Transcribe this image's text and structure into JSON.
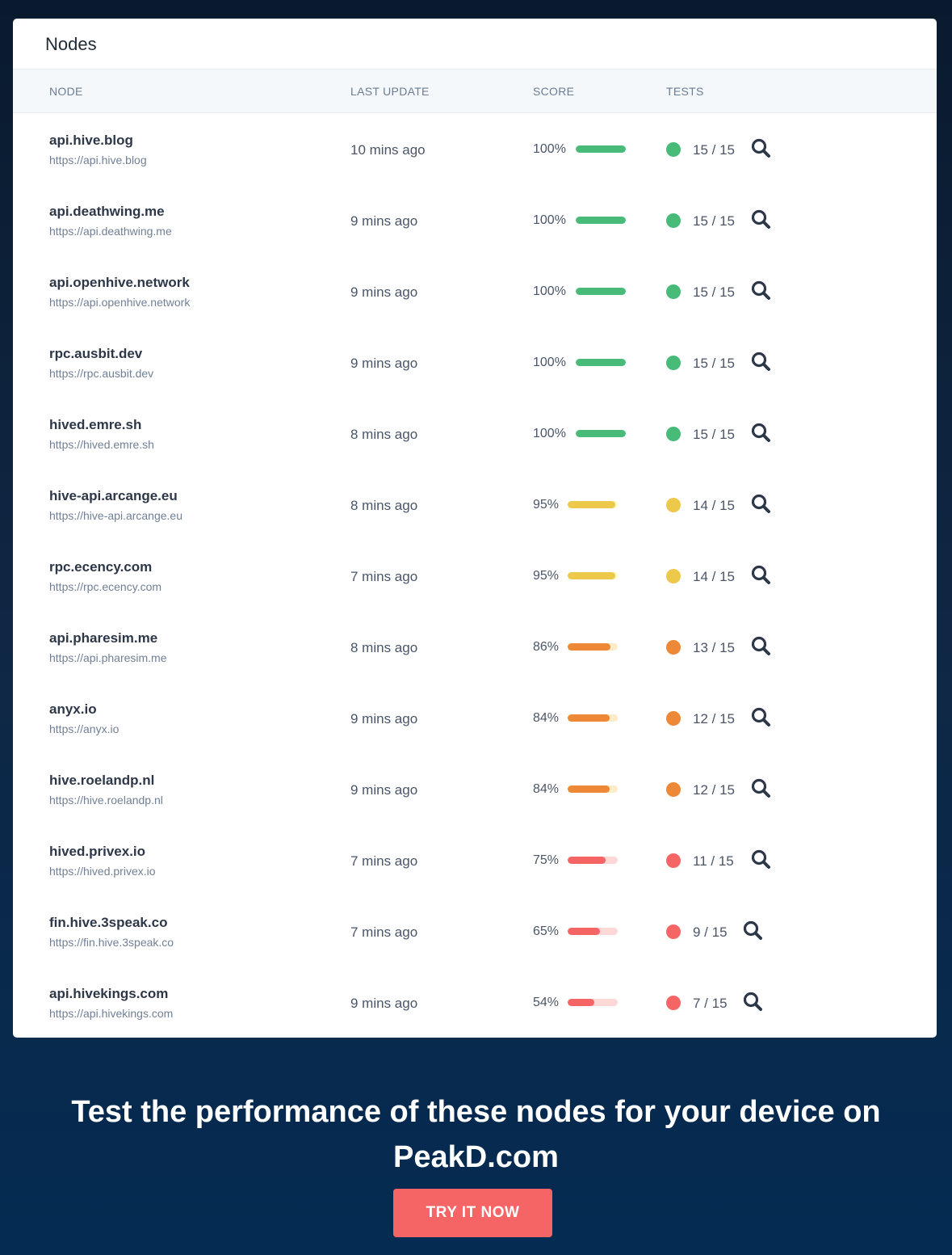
{
  "card": {
    "title": "Nodes"
  },
  "table": {
    "headers": {
      "node": "NODE",
      "last_update": "LAST UPDATE",
      "score": "SCORE",
      "tests": "TESTS"
    },
    "rows": [
      {
        "name": "api.hive.blog",
        "url": "https://api.hive.blog",
        "last_update": "10 mins ago",
        "score_label": "100%",
        "score": 1.0,
        "tests": "15 / 15",
        "status": "good"
      },
      {
        "name": "api.deathwing.me",
        "url": "https://api.deathwing.me",
        "last_update": "9 mins ago",
        "score_label": "100%",
        "score": 1.0,
        "tests": "15 / 15",
        "status": "good"
      },
      {
        "name": "api.openhive.network",
        "url": "https://api.openhive.network",
        "last_update": "9 mins ago",
        "score_label": "100%",
        "score": 1.0,
        "tests": "15 / 15",
        "status": "good"
      },
      {
        "name": "rpc.ausbit.dev",
        "url": "https://rpc.ausbit.dev",
        "last_update": "9 mins ago",
        "score_label": "100%",
        "score": 1.0,
        "tests": "15 / 15",
        "status": "good"
      },
      {
        "name": "hived.emre.sh",
        "url": "https://hived.emre.sh",
        "last_update": "8 mins ago",
        "score_label": "100%",
        "score": 1.0,
        "tests": "15 / 15",
        "status": "good"
      },
      {
        "name": "hive-api.arcange.eu",
        "url": "https://hive-api.arcange.eu",
        "last_update": "8 mins ago",
        "score_label": "95%",
        "score": 0.95,
        "tests": "14 / 15",
        "status": "warn"
      },
      {
        "name": "rpc.ecency.com",
        "url": "https://rpc.ecency.com",
        "last_update": "7 mins ago",
        "score_label": "95%",
        "score": 0.95,
        "tests": "14 / 15",
        "status": "warn"
      },
      {
        "name": "api.pharesim.me",
        "url": "https://api.pharesim.me",
        "last_update": "8 mins ago",
        "score_label": "86%",
        "score": 0.86,
        "tests": "13 / 15",
        "status": "fair"
      },
      {
        "name": "anyx.io",
        "url": "https://anyx.io",
        "last_update": "9 mins ago",
        "score_label": "84%",
        "score": 0.84,
        "tests": "12 / 15",
        "status": "fair"
      },
      {
        "name": "hive.roelandp.nl",
        "url": "https://hive.roelandp.nl",
        "last_update": "9 mins ago",
        "score_label": "84%",
        "score": 0.84,
        "tests": "12 / 15",
        "status": "fair"
      },
      {
        "name": "hived.privex.io",
        "url": "https://hived.privex.io",
        "last_update": "7 mins ago",
        "score_label": "75%",
        "score": 0.75,
        "tests": "11 / 15",
        "status": "bad"
      },
      {
        "name": "fin.hive.3speak.co",
        "url": "https://fin.hive.3speak.co",
        "last_update": "7 mins ago",
        "score_label": "65%",
        "score": 0.65,
        "tests": "9 / 15",
        "status": "bad"
      },
      {
        "name": "api.hivekings.com",
        "url": "https://api.hivekings.com",
        "last_update": "9 mins ago",
        "score_label": "54%",
        "score": 0.54,
        "tests": "7 / 15",
        "status": "bad"
      }
    ]
  },
  "status_colors": {
    "good": {
      "fill": "#48bb78",
      "track": "#c6f6d5",
      "dot": "#48bb78"
    },
    "warn": {
      "fill": "#ecc94b",
      "track": "#fefcbf",
      "dot": "#ecc94b"
    },
    "fair": {
      "fill": "#ed8936",
      "track": "#feebc8",
      "dot": "#ed8936"
    },
    "bad": {
      "fill": "#f56565",
      "track": "#fed7d7",
      "dot": "#f56565"
    }
  },
  "icons": {
    "details": "search-icon"
  },
  "cta": {
    "text": "Test the performance of these nodes for your device on PeakD.com",
    "button_label": "TRY IT NOW",
    "button_color": "#f56565"
  }
}
